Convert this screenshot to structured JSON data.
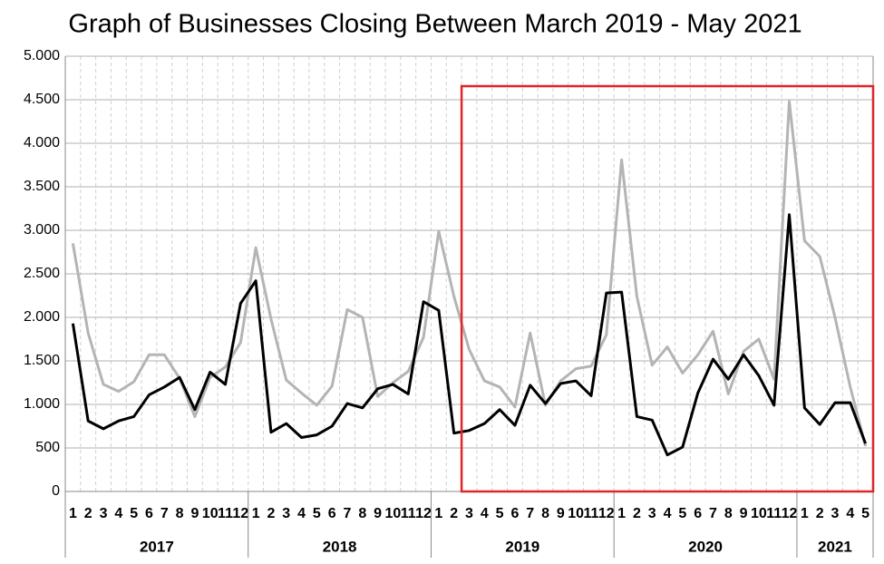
{
  "chart_data": {
    "type": "line",
    "title": "Graph of Businesses Closing Between March 2019 - May 2021",
    "categories": [
      "1",
      "2",
      "3",
      "4",
      "5",
      "6",
      "7",
      "8",
      "9",
      "10",
      "11",
      "12",
      "1",
      "2",
      "3",
      "4",
      "5",
      "6",
      "7",
      "8",
      "9",
      "10",
      "11",
      "12",
      "1",
      "2",
      "3",
      "4",
      "5",
      "6",
      "7",
      "8",
      "9",
      "10",
      "11",
      "12",
      "1",
      "2",
      "3",
      "4",
      "5",
      "6",
      "7",
      "8",
      "9",
      "10",
      "11",
      "12",
      "1",
      "2",
      "3",
      "4",
      "5"
    ],
    "groups": [
      {
        "label": "2017",
        "count": 12
      },
      {
        "label": "2018",
        "count": 12
      },
      {
        "label": "2019",
        "count": 12
      },
      {
        "label": "2020",
        "count": 12
      },
      {
        "label": "2021",
        "count": 5
      }
    ],
    "series": [
      {
        "color": "#b4b4b4",
        "values": [
          2850,
          1820,
          1230,
          1150,
          1260,
          1570,
          1570,
          1300,
          860,
          1310,
          1430,
          1710,
          2800,
          1980,
          1280,
          1130,
          990,
          1210,
          2090,
          2000,
          1090,
          1250,
          1380,
          1770,
          2990,
          2240,
          1630,
          1270,
          1200,
          970,
          1820,
          990,
          1270,
          1410,
          1440,
          1800,
          3810,
          2240,
          1450,
          1660,
          1360,
          1570,
          1840,
          1120,
          1610,
          1750,
          1290,
          4480,
          2880,
          2700,
          2000,
          1200,
          520
        ]
      },
      {
        "color": "#000000",
        "values": [
          1930,
          810,
          720,
          810,
          860,
          1110,
          1200,
          1310,
          940,
          1370,
          1230,
          2160,
          2420,
          680,
          780,
          620,
          650,
          750,
          1010,
          960,
          1180,
          1230,
          1120,
          2180,
          2080,
          670,
          700,
          780,
          940,
          760,
          1220,
          1010,
          1240,
          1270,
          1100,
          2280,
          2290,
          860,
          820,
          420,
          510,
          1130,
          1520,
          1290,
          1570,
          1330,
          990,
          3180,
          960,
          770,
          1020,
          1020,
          550
        ]
      }
    ],
    "ylim": [
      0,
      5000
    ],
    "yticks": [
      0,
      500,
      {
        "value": 1000,
        "label": "1.000"
      },
      {
        "value": 1500,
        "label": "1.500"
      },
      {
        "value": 2000,
        "label": "2.000"
      },
      {
        "value": 2500,
        "label": "2.500"
      },
      {
        "value": 3000,
        "label": "3.000"
      },
      {
        "value": 3500,
        "label": "3.500"
      },
      {
        "value": 4000,
        "label": "4.000"
      },
      {
        "value": 4500,
        "label": "4.500"
      },
      {
        "value": 5000,
        "label": "5.000"
      }
    ],
    "grid": true,
    "highlight": {
      "start_index": 26,
      "end_index": 52,
      "color": "#e0262b"
    }
  }
}
